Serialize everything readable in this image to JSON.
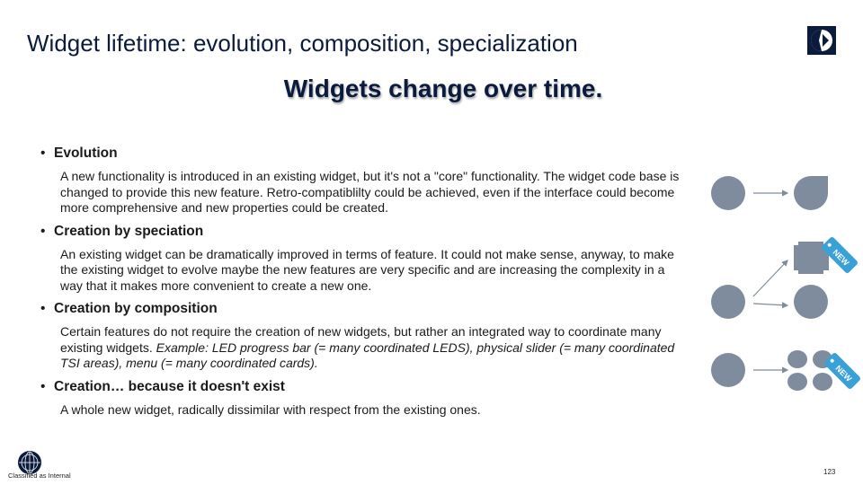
{
  "slide": {
    "title": "Widget lifetime: evolution, composition, specialization",
    "subtitle": "Widgets change over time.",
    "page_number": "123",
    "classification": "Classified as Internal"
  },
  "sections": [
    {
      "heading": "Evolution",
      "body": "A new functionality is introduced in an existing widget, but it's not a \"core\" functionality. The widget code base is changed to provide this new feature. Retro-compatiblilty could be achieved, even if the interface could become more comprehensive and new properties could be created."
    },
    {
      "heading": "Creation by speciation",
      "body": "An existing widget can be dramatically improved in terms of feature. It could not make sense, anyway, to make the existing widget to evolve maybe the new features are very specific and are increasing the complexity in a way that it makes more convenient to create a new one."
    },
    {
      "heading": "Creation by composition",
      "body_plain": "Certain features do not require the creation of new widgets, but rather an integrated way to coordinate many existing widgets. ",
      "body_italic": "Example: LED progress bar (= many coordinated LEDS), physical slider (= many coordinated TSI areas), menu (= many coordinated cards)."
    },
    {
      "heading": "Creation… because it doesn't exist",
      "body": "A whole new widget, radically dissimilar with respect from the existing ones."
    }
  ],
  "diagram": {
    "badge_label": "NEW",
    "shape_color": "#7f8c9e",
    "badge_color": "#3aa0d8"
  }
}
